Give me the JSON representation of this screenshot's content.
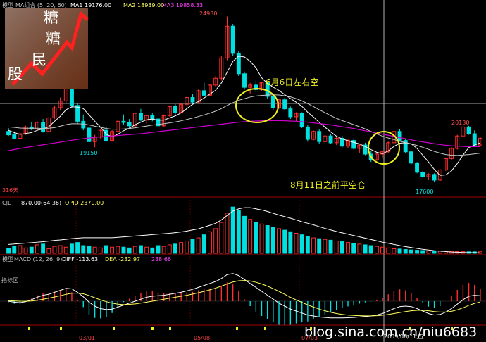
{
  "header": {
    "kline_label": "模型",
    "ma_group": "MA组合 (5, 20, 60)",
    "ma1": "MA1  19176.00",
    "ma2": "MA2  18939.00",
    "ma3": "MA3  19858.33"
  },
  "volume_header": {
    "cjl": "CJL",
    "cjl_value": "870.00(64.36)",
    "opid": "OPID  2370.00"
  },
  "macd_header": {
    "label": "模型",
    "name": "MACD (12, 26, 9)",
    "diff": "DIFF  -113.63",
    "dea": "DEA  -232.97",
    "macd": "238.66"
  },
  "price_labels": {
    "high": "24930",
    "low1": "19150",
    "low2": "17600",
    "high2": "20130",
    "days": "316天"
  },
  "annotations": {
    "ann1": "6月6日左右空",
    "ann2": "8月11日之前平空仓"
  },
  "dates": {
    "d1": "03/01",
    "d2": "05/08",
    "d3": "07/03",
    "d4": "2009/08/11,五"
  },
  "footer": {
    "watermark": "blog.sina.com.cn/niu6683",
    "tab_label": "指标区"
  },
  "logo_text": [
    "糖",
    "糖",
    "民",
    "股"
  ],
  "colors": {
    "up": "#ff3030",
    "down": "#00e0e0",
    "ma_short": "#ffffff",
    "ma_mid": "#c8c8c8",
    "ma_long": "#d000d0",
    "annotation": "#f0f020",
    "circle": "#f0f020"
  },
  "chart_data": {
    "type": "candlestick",
    "price_range_shown": [
      17600,
      24930
    ],
    "candles_ohlc": [
      [
        19850,
        20000,
        19650,
        19700
      ],
      [
        19700,
        19850,
        19500,
        19550
      ],
      [
        19550,
        19800,
        19450,
        19750
      ],
      [
        19750,
        20100,
        19700,
        20050
      ],
      [
        20050,
        20250,
        19900,
        19950
      ],
      [
        19950,
        20300,
        19900,
        20250
      ],
      [
        20250,
        20400,
        19800,
        19850
      ],
      [
        19850,
        20500,
        19800,
        20450
      ],
      [
        20450,
        21000,
        20400,
        20900
      ],
      [
        20900,
        21350,
        20800,
        21200
      ],
      [
        21200,
        21900,
        21100,
        21800
      ],
      [
        21800,
        22150,
        20900,
        21000
      ],
      [
        21000,
        21100,
        20200,
        20300
      ],
      [
        20300,
        20600,
        19900,
        20000
      ],
      [
        20000,
        20100,
        19300,
        19400
      ],
      [
        19400,
        19700,
        19150,
        19600
      ],
      [
        19600,
        19950,
        19500,
        19900
      ],
      [
        19900,
        20050,
        19400,
        19450
      ],
      [
        19450,
        19900,
        19400,
        19850
      ],
      [
        19850,
        20350,
        19800,
        20300
      ],
      [
        20300,
        20600,
        20150,
        20250
      ],
      [
        20250,
        20400,
        20000,
        20100
      ],
      [
        20100,
        20700,
        20050,
        20650
      ],
      [
        20650,
        20850,
        20300,
        20350
      ],
      [
        20350,
        20600,
        20200,
        20550
      ],
      [
        20550,
        20650,
        20300,
        20400
      ],
      [
        20400,
        20500,
        20000,
        20100
      ],
      [
        20100,
        20600,
        20050,
        20550
      ],
      [
        20550,
        21000,
        20500,
        20950
      ],
      [
        20950,
        21050,
        20600,
        20700
      ],
      [
        20700,
        21100,
        20650,
        21050
      ],
      [
        21050,
        21400,
        20950,
        21350
      ],
      [
        21350,
        21500,
        21050,
        21150
      ],
      [
        21150,
        21700,
        21100,
        21650
      ],
      [
        21650,
        22000,
        21400,
        21450
      ],
      [
        21450,
        21950,
        21400,
        21900
      ],
      [
        21900,
        22300,
        21800,
        22200
      ],
      [
        22200,
        23200,
        22100,
        23100
      ],
      [
        23100,
        24930,
        23000,
        24500
      ],
      [
        24500,
        24600,
        23200,
        23300
      ],
      [
        23300,
        23400,
        22300,
        22400
      ],
      [
        22400,
        22500,
        21700,
        21800
      ],
      [
        21800,
        22000,
        21500,
        21900
      ],
      [
        21900,
        22100,
        21600,
        21700
      ],
      [
        21700,
        22050,
        21650,
        22000
      ],
      [
        22000,
        22050,
        21300,
        21400
      ],
      [
        21400,
        21500,
        20800,
        20900
      ],
      [
        20900,
        21300,
        20850,
        21250
      ],
      [
        21250,
        21350,
        20800,
        20850
      ],
      [
        20850,
        20950,
        20400,
        20500
      ],
      [
        20500,
        20700,
        20300,
        20650
      ],
      [
        20650,
        20700,
        20000,
        20050
      ],
      [
        20050,
        20150,
        19400,
        19500
      ],
      [
        19500,
        19900,
        19450,
        19850
      ],
      [
        19850,
        19950,
        19300,
        19400
      ],
      [
        19400,
        19700,
        19300,
        19650
      ],
      [
        19650,
        19750,
        19300,
        19350
      ],
      [
        19350,
        19600,
        19250,
        19550
      ],
      [
        19550,
        19650,
        19150,
        19200
      ],
      [
        19200,
        19500,
        19100,
        19450
      ],
      [
        19450,
        19550,
        19050,
        19100
      ],
      [
        19100,
        19300,
        18900,
        19250
      ],
      [
        19250,
        19350,
        18800,
        18850
      ],
      [
        18850,
        19000,
        18500,
        18600
      ],
      [
        18600,
        18900,
        18550,
        18850
      ],
      [
        18850,
        19000,
        18700,
        18950
      ],
      [
        18950,
        19400,
        18900,
        19350
      ],
      [
        19350,
        19900,
        19300,
        19850
      ],
      [
        19850,
        19950,
        19400,
        19450
      ],
      [
        19450,
        19500,
        18900,
        18950
      ],
      [
        18950,
        19000,
        18400,
        18450
      ],
      [
        18450,
        18500,
        18000,
        18050
      ],
      [
        18050,
        18100,
        17800,
        17850
      ],
      [
        17850,
        18000,
        17700,
        17950
      ],
      [
        17950,
        18000,
        17600,
        17700
      ],
      [
        17700,
        18200,
        17650,
        18150
      ],
      [
        18150,
        18700,
        18100,
        18650
      ],
      [
        18650,
        19150,
        18600,
        19100
      ],
      [
        19100,
        19700,
        19050,
        19650
      ],
      [
        19650,
        20130,
        19600,
        20050
      ],
      [
        20050,
        20100,
        19700,
        19750
      ],
      [
        19750,
        19900,
        19200,
        19250
      ],
      [
        19250,
        19600,
        19200,
        19550
      ]
    ],
    "ma_short": [
      19900,
      19800,
      19720,
      19760,
      19800,
      19900,
      19960,
      20060,
      20300,
      20520,
      20810,
      20940,
      20930,
      20860,
      20580,
      20300,
      20040,
      19730,
      19610,
      19730,
      19880,
      19990,
      20150,
      20260,
      20370,
      20400,
      20350,
      20350,
      20450,
      20540,
      20670,
      20860,
      21050,
      21170,
      21330,
      21500,
      21670,
      21990,
      22470,
      22950,
      23180,
      23140,
      22950,
      22670,
      22220,
      21970,
      21810,
      21660,
      21480,
      21310,
      21140,
      20960,
      20700,
      20490,
      20250,
      20040,
      19830,
      19640,
      19520,
      19440,
      19370,
      19300,
      19180,
      19050,
      18930,
      18870,
      18990,
      19190,
      19330,
      19350,
      19300,
      19100,
      18800,
      18500,
      18170,
      17910,
      17930,
      18110,
      18430,
      18810,
      19140,
      19250,
      19350
    ],
    "ma_mid": [
      20050,
      20030,
      20000,
      19990,
      19990,
      19990,
      19980,
      19990,
      20020,
      20080,
      20150,
      20190,
      20190,
      20180,
      20140,
      20080,
      20030,
      19980,
      19950,
      19950,
      19960,
      19980,
      20010,
      20050,
      20090,
      20130,
      20160,
      20190,
      20230,
      20270,
      20320,
      20380,
      20440,
      20510,
      20580,
      20660,
      20750,
      20860,
      21000,
      21120,
      21230,
      21300,
      21370,
      21420,
      21440,
      21460,
      21470,
      21460,
      21430,
      21380,
      21300,
      21200,
      21080,
      20950,
      20810,
      20680,
      20550,
      20430,
      20330,
      20240,
      20150,
      20060,
      19960,
      19850,
      19740,
      19640,
      19560,
      19490,
      19420,
      19360,
      19300,
      19230,
      19150,
      19060,
      18970,
      18890,
      18830,
      18800,
      18790,
      18810,
      18830,
      18860,
      18890
    ],
    "ma_long": [
      19000,
      19050,
      19100,
      19140,
      19180,
      19220,
      19260,
      19300,
      19340,
      19380,
      19420,
      19460,
      19500,
      19530,
      19560,
      19590,
      19610,
      19630,
      19650,
      19670,
      19690,
      19710,
      19730,
      19750,
      19780,
      19810,
      19840,
      19870,
      19900,
      19930,
      19960,
      19990,
      20020,
      20050,
      20080,
      20110,
      20140,
      20170,
      20200,
      20230,
      20260,
      20280,
      20300,
      20310,
      20320,
      20330,
      20330,
      20330,
      20320,
      20310,
      20300,
      20280,
      20260,
      20230,
      20200,
      20170,
      20140,
      20100,
      20060,
      20020,
      19980,
      19930,
      19880,
      19830,
      19780,
      19730,
      19680,
      19630,
      19580,
      19530,
      19480,
      19430,
      19390,
      19350,
      19310,
      19270,
      19240,
      19220,
      19200,
      19190,
      19180,
      19180,
      19180
    ],
    "volume": [
      30,
      45,
      50,
      35,
      40,
      55,
      60,
      30,
      45,
      50,
      40,
      60,
      70,
      50,
      45,
      40,
      35,
      50,
      40,
      45,
      40,
      35,
      45,
      50,
      40,
      35,
      50,
      45,
      55,
      60,
      70,
      80,
      90,
      100,
      120,
      140,
      160,
      200,
      260,
      300,
      280,
      240,
      220,
      200,
      190,
      180,
      170,
      160,
      150,
      140,
      130,
      120,
      110,
      100,
      95,
      90,
      85,
      80,
      75,
      70,
      65,
      60,
      55,
      50,
      45,
      40,
      35,
      30,
      28,
      25,
      22,
      20,
      18,
      16,
      15,
      14,
      13,
      12,
      12,
      11,
      10,
      10,
      10
    ],
    "opid": [
      40,
      42,
      44,
      46,
      48,
      50,
      52,
      55,
      58,
      60,
      63,
      66,
      68,
      70,
      70,
      70,
      70,
      70,
      70,
      72,
      74,
      76,
      78,
      80,
      82,
      84,
      86,
      88,
      90,
      93,
      96,
      100,
      105,
      110,
      118,
      126,
      135,
      150,
      170,
      190,
      200,
      205,
      205,
      200,
      195,
      188,
      180,
      172,
      165,
      158,
      150,
      142,
      135,
      128,
      120,
      112,
      105,
      98,
      92,
      86,
      80,
      74,
      68,
      62,
      56,
      50,
      45,
      40,
      35,
      30,
      26,
      22,
      18,
      15,
      12,
      10,
      8,
      6,
      5,
      4,
      3,
      3,
      2
    ],
    "macd_diff": [
      0,
      -20,
      -30,
      -10,
      30,
      80,
      120,
      140,
      180,
      220,
      260,
      250,
      180,
      90,
      -20,
      -100,
      -150,
      -170,
      -160,
      -120,
      -80,
      -40,
      0,
      40,
      80,
      100,
      110,
      120,
      140,
      160,
      180,
      210,
      240,
      280,
      320,
      360,
      400,
      460,
      540,
      560,
      520,
      440,
      360,
      280,
      200,
      120,
      40,
      -40,
      -100,
      -160,
      -200,
      -240,
      -280,
      -300,
      -320,
      -330,
      -340,
      -340,
      -340,
      -335,
      -330,
      -320,
      -310,
      -300,
      -280,
      -250,
      -200,
      -150,
      -110,
      -100,
      -110,
      -150,
      -200,
      -250,
      -280,
      -270,
      -220,
      -150,
      -60,
      30,
      100,
      120,
      110
    ],
    "macd_dea": [
      10,
      6,
      0,
      -2,
      4,
      20,
      40,
      60,
      85,
      110,
      140,
      160,
      165,
      150,
      115,
      70,
      25,
      -10,
      -40,
      -60,
      -70,
      -65,
      -55,
      -40,
      -20,
      0,
      20,
      40,
      60,
      80,
      100,
      120,
      145,
      170,
      200,
      230,
      265,
      305,
      350,
      390,
      415,
      420,
      410,
      385,
      350,
      305,
      255,
      200,
      140,
      80,
      25,
      -25,
      -75,
      -120,
      -160,
      -195,
      -225,
      -250,
      -268,
      -282,
      -290,
      -295,
      -298,
      -298,
      -295,
      -285,
      -270,
      -250,
      -230,
      -210,
      -195,
      -185,
      -185,
      -195,
      -210,
      -220,
      -220,
      -205,
      -175,
      -135,
      -85,
      -45,
      -15
    ]
  }
}
